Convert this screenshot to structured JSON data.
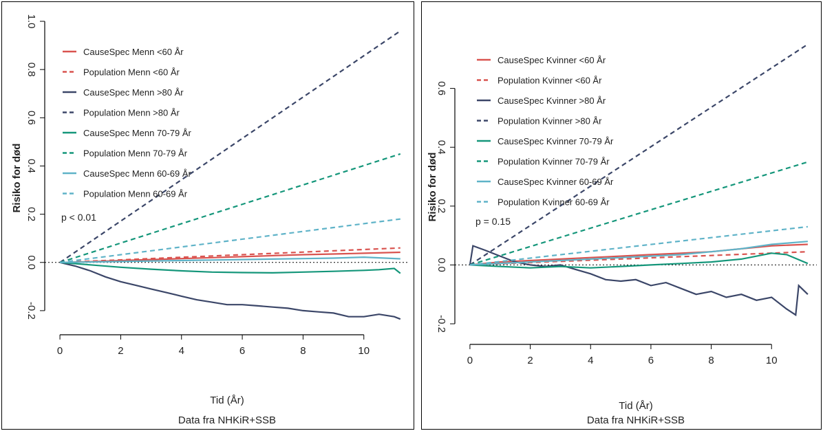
{
  "chart_data": [
    {
      "type": "line",
      "xlabel": "Tid (År)",
      "source": "Data fra NHKiR+SSB",
      "ylabel": "Risiko for død",
      "annotation": "p < 0.01",
      "xlim": [
        -0.5,
        11.5
      ],
      "ylim": [
        -0.3,
        1.0
      ],
      "xticks": [
        "0",
        "2",
        "4",
        "6",
        "8",
        "10"
      ],
      "yticks": [
        "-0.2",
        "0.0",
        "0.2",
        "0.4",
        "0.6",
        "0.8",
        "1.0"
      ],
      "reference_line": 0,
      "legend_position": "top-left",
      "series": [
        {
          "name": "CauseSpec Menn <60 År",
          "color": "#d9534f",
          "dash": false,
          "x": [
            0,
            1,
            2,
            3,
            4,
            5,
            6,
            7,
            8,
            9,
            10,
            11.2
          ],
          "y": [
            0,
            0.003,
            0.008,
            0.012,
            0.016,
            0.02,
            0.024,
            0.028,
            0.032,
            0.035,
            0.038,
            0.042
          ]
        },
        {
          "name": "Population Menn <60 År",
          "color": "#d9534f",
          "dash": true,
          "x": [
            0,
            11.2
          ],
          "y": [
            0,
            0.06
          ]
        },
        {
          "name": "CauseSpec Menn >80 År",
          "color": "#3b4668",
          "dash": false,
          "x": [
            0,
            0.5,
            1,
            1.5,
            2,
            2.5,
            3,
            3.5,
            4,
            4.5,
            5,
            5.5,
            6,
            6.5,
            7,
            7.5,
            8,
            8.5,
            9,
            9.5,
            10,
            10.5,
            11,
            11.2
          ],
          "y": [
            0,
            -0.015,
            -0.035,
            -0.06,
            -0.08,
            -0.095,
            -0.11,
            -0.125,
            -0.14,
            -0.155,
            -0.165,
            -0.175,
            -0.175,
            -0.18,
            -0.185,
            -0.19,
            -0.2,
            -0.205,
            -0.21,
            -0.225,
            -0.225,
            -0.215,
            -0.225,
            -0.235
          ]
        },
        {
          "name": "Population Menn >80 År",
          "color": "#3b4668",
          "dash": true,
          "x": [
            0,
            11.2
          ],
          "y": [
            0,
            0.96
          ]
        },
        {
          "name": "CauseSpec Menn 70-79 År",
          "color": "#14967a",
          "dash": false,
          "x": [
            0,
            1,
            2,
            3,
            4,
            5,
            6,
            7,
            8,
            9,
            10,
            10.5,
            11,
            11.2
          ],
          "y": [
            0,
            -0.01,
            -0.02,
            -0.028,
            -0.035,
            -0.04,
            -0.042,
            -0.043,
            -0.04,
            -0.037,
            -0.033,
            -0.03,
            -0.025,
            -0.045
          ]
        },
        {
          "name": "Population Menn 70-79 År",
          "color": "#14967a",
          "dash": true,
          "x": [
            0,
            11.2
          ],
          "y": [
            0,
            0.45
          ]
        },
        {
          "name": "CauseSpec Menn 60-69 År",
          "color": "#5fb3c8",
          "dash": false,
          "x": [
            0,
            1,
            2,
            3,
            4,
            5,
            6,
            7,
            8,
            9,
            10,
            11.2
          ],
          "y": [
            0,
            0.002,
            0.004,
            0.006,
            0.008,
            0.01,
            0.012,
            0.014,
            0.016,
            0.018,
            0.022,
            0.015
          ]
        },
        {
          "name": "Population Menn 60-69 År",
          "color": "#5fb3c8",
          "dash": true,
          "x": [
            0,
            11.2
          ],
          "y": [
            0,
            0.18
          ]
        }
      ]
    },
    {
      "type": "line",
      "xlabel": "Tid (År)",
      "source": "Data fra NHKiR+SSB",
      "ylabel": "Risiko for død",
      "annotation": "p = 0.15",
      "xlim": [
        -0.5,
        11.5
      ],
      "ylim": [
        -0.27,
        0.8
      ],
      "xticks": [
        "0",
        "2",
        "4",
        "6",
        "8",
        "10"
      ],
      "yticks": [
        "-0.2",
        "0.0",
        "0.2",
        "0.4",
        "0.6"
      ],
      "reference_line": 0,
      "legend_position": "top-left",
      "series": [
        {
          "name": "CauseSpec Kvinner <60 År",
          "color": "#d9534f",
          "dash": false,
          "x": [
            0,
            1,
            2,
            3,
            4,
            5,
            6,
            7,
            8,
            9,
            10,
            11.2
          ],
          "y": [
            0,
            0.01,
            0.015,
            0.02,
            0.025,
            0.03,
            0.035,
            0.04,
            0.045,
            0.055,
            0.065,
            0.07
          ]
        },
        {
          "name": "Population Kvinner <60 År",
          "color": "#d9534f",
          "dash": true,
          "x": [
            0,
            11.2
          ],
          "y": [
            0,
            0.045
          ]
        },
        {
          "name": "CauseSpec Kvinner >80 År",
          "color": "#3b4668",
          "dash": false,
          "x": [
            0,
            0.1,
            0.5,
            1,
            1.5,
            2,
            2.5,
            3,
            3.5,
            4,
            4.5,
            5,
            5.5,
            6,
            6.5,
            7,
            7.5,
            8,
            8.5,
            9,
            9.5,
            10,
            10.5,
            10.8,
            10.9,
            11.2
          ],
          "y": [
            0,
            0.065,
            0.05,
            0.03,
            0.01,
            0.0,
            -0.005,
            0.0,
            -0.015,
            -0.03,
            -0.05,
            -0.055,
            -0.05,
            -0.07,
            -0.06,
            -0.08,
            -0.1,
            -0.09,
            -0.11,
            -0.1,
            -0.12,
            -0.11,
            -0.15,
            -0.17,
            -0.07,
            -0.1
          ]
        },
        {
          "name": "Population Kvinner >80 År",
          "color": "#3b4668",
          "dash": true,
          "x": [
            0,
            11.2
          ],
          "y": [
            0,
            0.75
          ]
        },
        {
          "name": "CauseSpec Kvinner 70-79 År",
          "color": "#14967a",
          "dash": false,
          "x": [
            0,
            1,
            2,
            3,
            4,
            5,
            6,
            7,
            8,
            9,
            10,
            10.5,
            11.2
          ],
          "y": [
            0,
            -0.005,
            -0.01,
            -0.005,
            -0.01,
            -0.005,
            0.0,
            0.005,
            0.01,
            0.02,
            0.04,
            0.035,
            0.005
          ]
        },
        {
          "name": "Population Kvinner 70-79 År",
          "color": "#14967a",
          "dash": true,
          "x": [
            0,
            11.2
          ],
          "y": [
            0,
            0.35
          ]
        },
        {
          "name": "CauseSpec Kvinner 60-69 År",
          "color": "#5fb3c8",
          "dash": false,
          "x": [
            0,
            1,
            2,
            3,
            4,
            5,
            6,
            7,
            8,
            9,
            10,
            11.2
          ],
          "y": [
            0,
            0.005,
            0.01,
            0.015,
            0.02,
            0.025,
            0.03,
            0.035,
            0.045,
            0.055,
            0.07,
            0.08
          ]
        },
        {
          "name": "Population Kvinner 60-69 År",
          "color": "#5fb3c8",
          "dash": true,
          "x": [
            0,
            11.2
          ],
          "y": [
            0,
            0.13
          ]
        }
      ]
    }
  ]
}
